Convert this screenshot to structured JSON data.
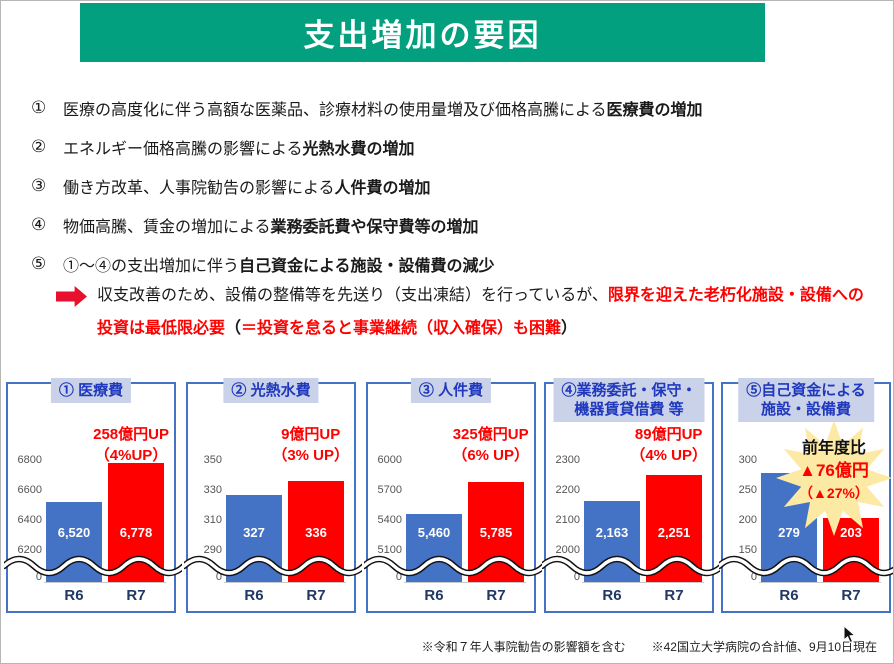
{
  "banner": {
    "title": "支出増加の要因",
    "bg_color": "#02A07E"
  },
  "factors": [
    {
      "num": "①",
      "lead": "医療の高度化に伴う高額な医薬品、診療材料の使用量増及び価格高騰による",
      "bold": "医療費の増加"
    },
    {
      "num": "②",
      "lead": "エネルギー価格高騰の影響による",
      "bold": "光熱水費の増加"
    },
    {
      "num": "③",
      "lead": "働き方改革、人事院勧告の影響による",
      "bold": "人件費の増加"
    },
    {
      "num": "④",
      "lead": "物価高騰、賃金の増加による",
      "bold": "業務委託費や保守費等の増加"
    },
    {
      "num": "⑤",
      "lead": "①～④の支出増加に伴う",
      "bold": "自己資金による施設・設備費の減少"
    }
  ],
  "note": {
    "arrow_icon": "right-block-arrow",
    "segments": [
      {
        "t": "収支改善のため、設備の整備等を先送り（支出凍結）を行っているが、",
        "b": false,
        "c": "#1a1a1a"
      },
      {
        "t": "限界を迎えた老朽化施設・設備への投資は最低限必要",
        "b": true,
        "c": "#FF0000"
      },
      {
        "t": "（",
        "b": true,
        "c": "#1a1a1a"
      },
      {
        "t": "＝投資を怠ると事業継続（収入確保）も困難",
        "b": true,
        "c": "#FF0000"
      },
      {
        "t": "）",
        "b": true,
        "c": "#1a1a1a"
      }
    ]
  },
  "chart_data": [
    {
      "type": "bar",
      "title_lines": [
        "① 医療費"
      ],
      "categories": [
        "R6",
        "R7"
      ],
      "values": [
        6520,
        6778
      ],
      "value_labels": [
        "6,520",
        "6,778"
      ],
      "yticks": [
        6800,
        6600,
        6400,
        6200
      ],
      "zero_label": "0",
      "axis_break": true,
      "annotation_lines": [
        "258億円UP",
        "（4%UP）"
      ],
      "bar_colors": [
        "#4472C4",
        "#FF0000"
      ]
    },
    {
      "type": "bar",
      "title_lines": [
        "② 光熱水費"
      ],
      "categories": [
        "R6",
        "R7"
      ],
      "values": [
        327,
        336
      ],
      "value_labels": [
        "327",
        "336"
      ],
      "yticks": [
        350,
        330,
        310,
        290
      ],
      "zero_label": "0",
      "axis_break": true,
      "annotation_lines": [
        "9億円UP",
        "（3% UP）"
      ],
      "bar_colors": [
        "#4472C4",
        "#FF0000"
      ]
    },
    {
      "type": "bar",
      "title_lines": [
        "③ 人件費"
      ],
      "categories": [
        "R6",
        "R7"
      ],
      "values": [
        5460,
        5785
      ],
      "value_labels": [
        "5,460",
        "5,785"
      ],
      "yticks": [
        6000,
        5700,
        5400,
        5100
      ],
      "zero_label": "0",
      "axis_break": true,
      "annotation_lines": [
        "325億円UP",
        "（6% UP）"
      ],
      "bar_colors": [
        "#4472C4",
        "#FF0000"
      ]
    },
    {
      "type": "bar",
      "title_lines": [
        "④業務委託・保守・",
        "機器賃貸借費 等"
      ],
      "categories": [
        "R6",
        "R7"
      ],
      "values": [
        2163,
        2251
      ],
      "value_labels": [
        "2,163",
        "2,251"
      ],
      "yticks": [
        2300,
        2200,
        2100,
        2000
      ],
      "zero_label": "0",
      "axis_break": true,
      "annotation_lines": [
        "89億円UP",
        "（4% UP）"
      ],
      "bar_colors": [
        "#4472C4",
        "#FF0000"
      ]
    },
    {
      "type": "bar",
      "title_lines": [
        "⑤自己資金による",
        "施設・設備費"
      ],
      "categories": [
        "R6",
        "R7"
      ],
      "values": [
        279,
        203
      ],
      "value_labels": [
        "279",
        "203"
      ],
      "yticks": [
        300,
        250,
        200,
        150
      ],
      "zero_label": "0",
      "axis_break": true,
      "annotation_lines": [],
      "starburst": {
        "icon": "starburst-badge",
        "fill": "#FCE9A3",
        "lines": [
          "前年度比",
          "▲76億円",
          "（▲27%）"
        ],
        "line_colors": [
          "#111111",
          "#FF0000",
          "#FF0000"
        ],
        "line_sizes": [
          16,
          17,
          14
        ]
      },
      "bar_colors": [
        "#4472C4",
        "#FF0000"
      ]
    }
  ],
  "footer": {
    "note1": "※令和７年人事院勧告の影響額を含む",
    "note2": "※42国立大学病院の合計値、9月10日現在"
  },
  "colors": {
    "banner_green": "#02A07E",
    "bar_blue": "#4472C4",
    "bar_red": "#FF0000",
    "accent_red": "#FF0000",
    "axis_label_navy": "#1F3864",
    "chart_title_blue": "#2038BE",
    "chart_title_bg": "#C9D2E9"
  }
}
